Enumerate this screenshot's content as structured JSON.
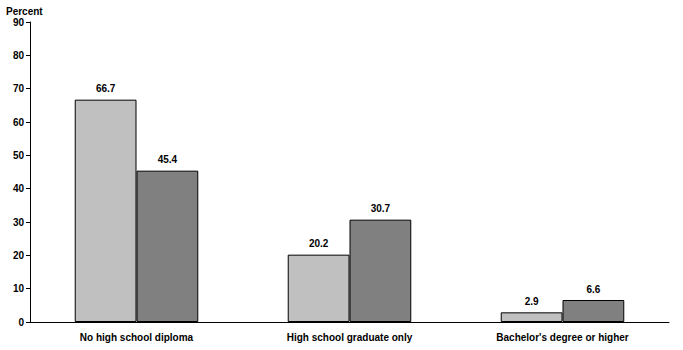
{
  "chart_data": {
    "type": "bar",
    "ylabel": "Percent",
    "categories": [
      "No high school diploma",
      "High school graduate only",
      "Bachelor's degree or higher"
    ],
    "series": [
      {
        "color": "#c0c0c0",
        "values": [
          66.7,
          20.2,
          2.9
        ]
      },
      {
        "color": "#808080",
        "values": [
          45.4,
          30.7,
          6.6
        ]
      }
    ],
    "ylim": [
      0,
      90
    ],
    "yticks": [
      0,
      10,
      20,
      30,
      40,
      50,
      60,
      70,
      80,
      90
    ],
    "grid": false,
    "data_labels": true
  }
}
